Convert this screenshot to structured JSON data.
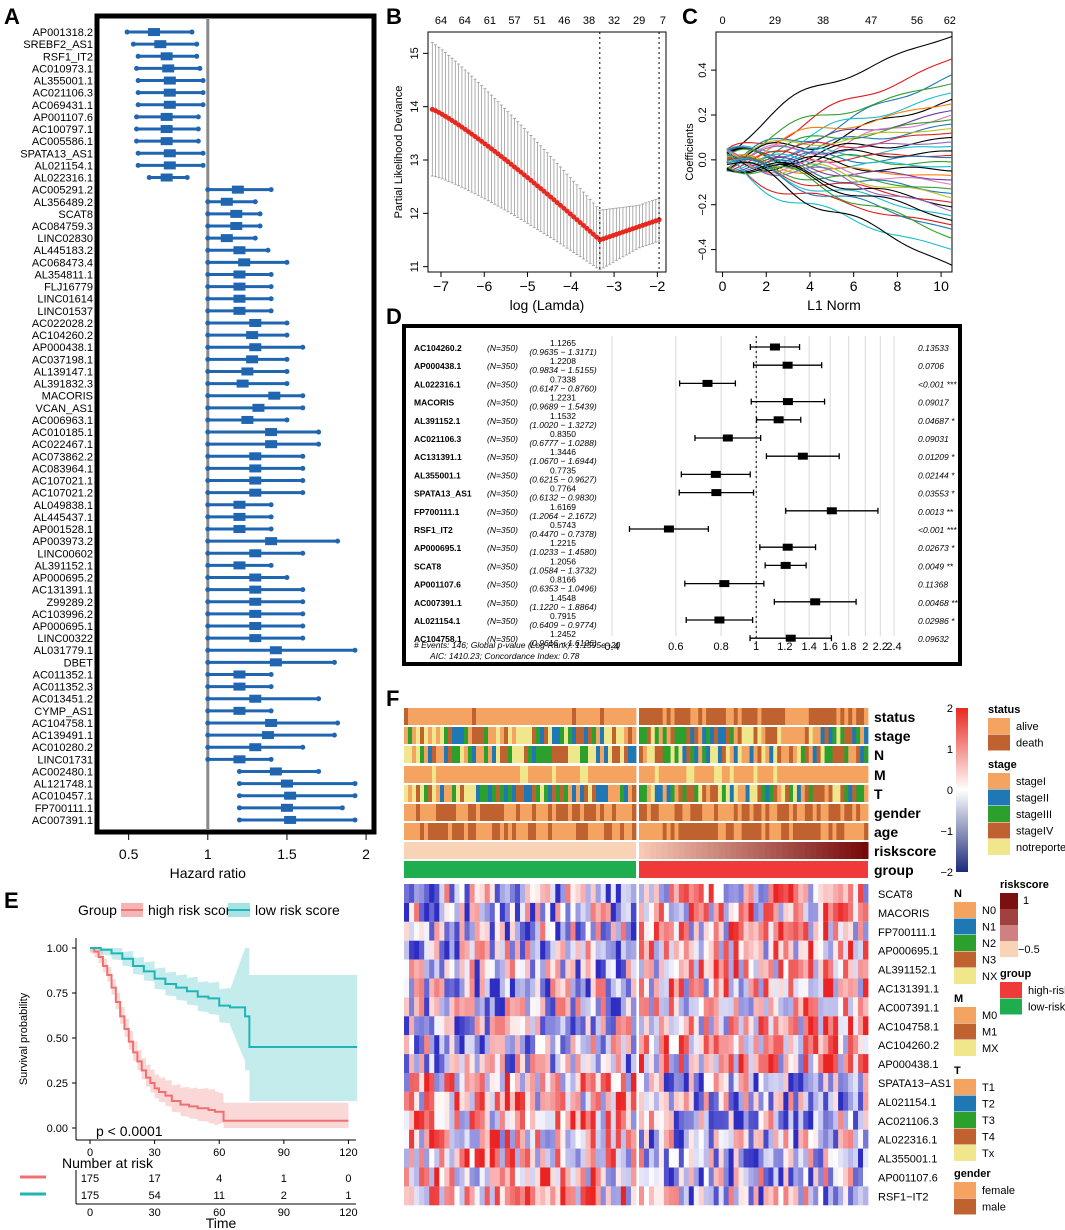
{
  "panel_labels": {
    "a": "A",
    "b": "B",
    "c": "C",
    "d": "D",
    "e": "E",
    "f": "F"
  },
  "colors": {
    "forest_blue": "#1f65b0",
    "km_high": "#f07070",
    "km_low": "#1fb5b5",
    "annot_orange": "#f4a460",
    "annot_brown": "#c0622f"
  },
  "chart_data": [
    {
      "id": "A",
      "type": "forest",
      "xlabel": "Hazard ratio",
      "xlim": [
        0.3,
        2.05
      ],
      "xticks": [
        0.5,
        1,
        1.5,
        2
      ],
      "ref_line": 1,
      "genes": [
        "AP001318.2",
        "SREBF2_AS1",
        "RSF1_IT2",
        "AC010973.1",
        "AL355001.1",
        "AC021106.3",
        "AC069431.1",
        "AP001107.6",
        "AC100797.1",
        "AC005586.1",
        "SPATA13_AS1",
        "AL021154.1",
        "AL022316.1",
        "AC005291.2",
        "AL356489.2",
        "SCAT8",
        "AC084759.3",
        "LINC02830",
        "AL445183.2",
        "AC068473.4",
        "AL354811.1",
        "FLJ16779",
        "LINC01614",
        "LINC01537",
        "AC022028.2",
        "AC104260.2",
        "AP000438.1",
        "AC037198.1",
        "AL139147.1",
        "AL391832.3",
        "MACORIS",
        "VCAN_AS1",
        "AC006963.1",
        "AC010185.1",
        "AC022467.1",
        "AC073862.2",
        "AC083964.1",
        "AC107021.1",
        "AC107021.2",
        "AL049838.1",
        "AL445437.1",
        "AP001528.1",
        "AP003973.2",
        "LINC00602",
        "AL391152.1",
        "AP000695.2",
        "AC131391.1",
        "Z99289.2",
        "AC103996.2",
        "AP000695.1",
        "LINC00322",
        "AL031779.1",
        "DBET",
        "AC011352.1",
        "AC011352.3",
        "AC013451.2",
        "CYMP_AS1",
        "AC104758.1",
        "AC139491.1",
        "AC010280.2",
        "LINC01731",
        "AC002480.1",
        "AL121748.1",
        "AC010457.1",
        "FP700111.1",
        "AC007391.1"
      ],
      "hr": [
        0.66,
        0.7,
        0.74,
        0.75,
        0.76,
        0.76,
        0.76,
        0.74,
        0.74,
        0.74,
        0.76,
        0.76,
        0.74,
        1.19,
        1.12,
        1.18,
        1.18,
        1.12,
        1.2,
        1.23,
        1.2,
        1.2,
        1.2,
        1.2,
        1.3,
        1.28,
        1.3,
        1.28,
        1.25,
        1.22,
        1.42,
        1.32,
        1.25,
        1.4,
        1.4,
        1.3,
        1.3,
        1.3,
        1.3,
        1.2,
        1.2,
        1.2,
        1.4,
        1.3,
        1.2,
        1.3,
        1.3,
        1.3,
        1.3,
        1.3,
        1.3,
        1.43,
        1.43,
        1.2,
        1.2,
        1.3,
        1.2,
        1.4,
        1.38,
        1.3,
        1.2,
        1.43,
        1.5,
        1.52,
        1.5,
        1.52
      ],
      "lo": [
        0.49,
        0.53,
        0.56,
        0.55,
        0.56,
        0.56,
        0.56,
        0.55,
        0.55,
        0.55,
        0.56,
        0.56,
        0.63,
        1.0,
        1.0,
        1.0,
        1.0,
        1.0,
        1.0,
        1.0,
        1.0,
        1.0,
        1.0,
        1.0,
        1.0,
        1.0,
        1.0,
        1.0,
        1.0,
        1.0,
        1.0,
        1.0,
        1.0,
        1.0,
        1.0,
        1.0,
        1.0,
        1.0,
        1.0,
        1.0,
        1.0,
        1.0,
        1.0,
        1.0,
        1.0,
        1.0,
        1.0,
        1.0,
        1.0,
        1.0,
        1.0,
        1.0,
        1.0,
        1.0,
        1.0,
        1.0,
        1.0,
        1.0,
        1.0,
        1.0,
        1.0,
        1.2,
        1.2,
        1.2,
        1.2,
        1.2
      ],
      "hi": [
        0.9,
        0.93,
        0.93,
        0.95,
        0.97,
        0.97,
        0.97,
        0.94,
        0.94,
        0.94,
        0.97,
        0.97,
        0.87,
        1.4,
        1.3,
        1.33,
        1.33,
        1.3,
        1.38,
        1.5,
        1.4,
        1.4,
        1.4,
        1.4,
        1.5,
        1.5,
        1.6,
        1.5,
        1.5,
        1.5,
        1.6,
        1.6,
        1.5,
        1.7,
        1.7,
        1.6,
        1.6,
        1.6,
        1.6,
        1.4,
        1.4,
        1.4,
        1.82,
        1.6,
        1.4,
        1.5,
        1.6,
        1.6,
        1.6,
        1.6,
        1.6,
        1.93,
        1.8,
        1.4,
        1.4,
        1.7,
        1.4,
        1.82,
        1.8,
        1.6,
        1.4,
        1.7,
        1.93,
        1.93,
        1.85,
        1.93
      ]
    },
    {
      "id": "B",
      "type": "cv_deviance",
      "xlabel": "log (Lamda)",
      "ylabel": "Partial Likelihood Deviance",
      "xlim": [
        -7.3,
        -1.8
      ],
      "ylim": [
        10.9,
        15.4
      ],
      "xticks": [
        -7,
        -6,
        -5,
        -4,
        -3,
        -2
      ],
      "yticks": [
        11,
        12,
        13,
        14,
        15
      ],
      "top_ticks": [
        "64",
        "64",
        "61",
        "57",
        "51",
        "46",
        "38",
        "32",
        "29",
        "7"
      ],
      "top_tick_x": [
        -7.0,
        -6.45,
        -5.87,
        -5.3,
        -4.72,
        -4.15,
        -3.58,
        -3.0,
        -2.42,
        -1.87
      ],
      "vlines": [
        -3.33,
        -1.96
      ],
      "x_start": -7.2,
      "x_end": -1.96,
      "n_points": 70
    },
    {
      "id": "C",
      "type": "coef_path",
      "xlabel": "L1 Norm",
      "ylabel": "Coefficients",
      "xlim": [
        -0.3,
        10.5
      ],
      "ylim": [
        -0.5,
        0.57
      ],
      "xticks": [
        0,
        2,
        4,
        6,
        8,
        10
      ],
      "yticks": [
        -0.4,
        -0.2,
        0.0,
        0.2,
        0.4
      ],
      "top_ticks": [
        "0",
        "29",
        "38",
        "47",
        "56",
        "62"
      ],
      "top_tick_x": [
        0,
        2.4,
        4.6,
        6.8,
        8.9,
        10.4
      ],
      "final_coefs": [
        0.55,
        0.45,
        0.38,
        0.34,
        0.3,
        0.27,
        0.25,
        0.22,
        0.2,
        0.18,
        0.16,
        0.14,
        0.12,
        0.1,
        0.08,
        0.06,
        0.04,
        0.02,
        0.01,
        -0.01,
        -0.03,
        -0.05,
        -0.07,
        -0.09,
        -0.11,
        -0.13,
        -0.15,
        -0.17,
        -0.19,
        -0.21,
        -0.23,
        -0.25,
        -0.27,
        -0.29,
        -0.31,
        -0.35,
        -0.4,
        -0.47
      ],
      "line_colors": [
        "#000000",
        "#e31a1c",
        "#1f78b4",
        "#33a02c",
        "#17becf",
        "#000000",
        "#ff7f0e",
        "#6a3d9a",
        "#e377c2",
        "#2ca02c",
        "#1f77b4",
        "#bcbd22",
        "#d62728",
        "#000000",
        "#9467bd",
        "#17becf"
      ]
    },
    {
      "id": "D",
      "type": "forest_table",
      "genes": [
        "AC104260.2",
        "AP000438.1",
        "AL022316.1",
        "MACORIS",
        "AL391152.1",
        "AC021106.3",
        "AC131391.1",
        "AL355001.1",
        "SPATA13_AS1",
        "FP700111.1",
        "RSF1_IT2",
        "AP000695.1",
        "SCAT8",
        "AP001107.6",
        "AC007391.1",
        "AL021154.1",
        "AC104758.1"
      ],
      "n": [
        "(N=350)",
        "(N=350)",
        "(N=350)",
        "(N=350)",
        "(N=350)",
        "(N=350)",
        "(N=350)",
        "(N=350)",
        "(N=350)",
        "(N=350)",
        "(N=350)",
        "(N=350)",
        "(N=350)",
        "(N=350)",
        "(N=350)",
        "(N=350)",
        "(N=350)"
      ],
      "hr_text": [
        "1.1265",
        "1.2208",
        "0.7338",
        "1.2231",
        "1.1532",
        "0.8350",
        "1.3446",
        "0.7735",
        "0.7764",
        "1.6169",
        "0.5743",
        "1.2215",
        "1.2056",
        "0.8166",
        "1.4548",
        "0.7915",
        "1.2452"
      ],
      "ci_text": [
        "(0.9635 − 1.3171)",
        "(0.9834 − 1.5155)",
        "(0.6147 − 0.8760)",
        "(0.9689 − 1.5439)",
        "(1.0020 − 1.3272)",
        "(0.6777 − 1.0288)",
        "(1.0670 − 1.6944)",
        "(0.6215 − 0.9627)",
        "(0.6132 − 0.9830)",
        "(1.2064 − 2.1672)",
        "(0.4470 − 0.7378)",
        "(1.0233 − 1.4580)",
        "(1.0584 − 1.3732)",
        "(0.6353 − 1.0496)",
        "(1.1220 − 1.8864)",
        "(0.6409 − 0.9774)",
        "(0.9616 − 1.6126)"
      ],
      "p_text": [
        "0.13533",
        "0.0706",
        "<0.001 ***",
        "0.09017",
        "0.04687 *",
        "0.09031",
        "0.01209 *",
        "0.02144 *",
        "0.03553 *",
        "0.0013 **",
        "<0.001 ***",
        "0.02673 *",
        "0.0049 **",
        "0.11368",
        "0.00468 **",
        "0.02986 *",
        "0.09632"
      ],
      "hr": [
        1.1265,
        1.2208,
        0.7338,
        1.2231,
        1.1532,
        0.835,
        1.3446,
        0.7735,
        0.7764,
        1.6169,
        0.5743,
        1.2215,
        1.2056,
        0.8166,
        1.4548,
        0.7915,
        1.2452
      ],
      "lo": [
        0.9635,
        0.9834,
        0.6147,
        0.9689,
        1.002,
        0.6777,
        1.067,
        0.6215,
        0.6132,
        1.2064,
        0.447,
        1.0233,
        1.0584,
        0.6353,
        1.122,
        0.6409,
        0.9616
      ],
      "hi": [
        1.3171,
        1.5155,
        0.876,
        1.5439,
        1.3272,
        1.0288,
        1.6944,
        0.9627,
        0.983,
        2.1672,
        0.7378,
        1.458,
        1.3732,
        1.0496,
        1.8864,
        0.9774,
        1.6126
      ],
      "axis_ticks": [
        0.4,
        0.6,
        0.8,
        1,
        1.2,
        1.4,
        1.6,
        1.8,
        2,
        2.2,
        2.4
      ],
      "axis_labels": [
        "0.4",
        "0.6",
        "0.8",
        "1",
        "1.2",
        "1.4",
        "1.6",
        "1.8",
        "2",
        "2.2",
        "2.4"
      ],
      "footer1": "# Events: 146; Global p-value (Log-Rank): 1.1595e−20",
      "footer2": "AIC: 1410.23; Concordance Index: 0.78"
    },
    {
      "id": "E",
      "type": "km",
      "legend_title": "Group",
      "legend": [
        "high risk score",
        "low risk score"
      ],
      "xlabel": "Time",
      "ylabel": "Survival probability",
      "xticks": [
        0,
        30,
        60,
        90,
        120
      ],
      "yticks": [
        "0.00",
        "0.25",
        "0.50",
        "0.75",
        "1.00"
      ],
      "pvalue": "p < 0.0001",
      "risk_title": "Number at risk",
      "risk_high": [
        "175",
        "17",
        "4",
        "1",
        "0"
      ],
      "risk_low": [
        "175",
        "54",
        "11",
        "2",
        "1"
      ],
      "high_curve": [
        [
          0,
          1
        ],
        [
          2,
          0.98
        ],
        [
          4,
          0.95
        ],
        [
          6,
          0.9
        ],
        [
          8,
          0.85
        ],
        [
          10,
          0.78
        ],
        [
          12,
          0.7
        ],
        [
          14,
          0.62
        ],
        [
          16,
          0.55
        ],
        [
          18,
          0.48
        ],
        [
          20,
          0.42
        ],
        [
          22,
          0.37
        ],
        [
          24,
          0.32
        ],
        [
          26,
          0.28
        ],
        [
          28,
          0.25
        ],
        [
          30,
          0.22
        ],
        [
          32,
          0.2
        ],
        [
          35,
          0.18
        ],
        [
          38,
          0.15
        ],
        [
          42,
          0.13
        ],
        [
          46,
          0.12
        ],
        [
          50,
          0.11
        ],
        [
          55,
          0.1
        ],
        [
          58,
          0.09
        ],
        [
          62,
          0.04
        ],
        [
          120,
          0.04
        ]
      ],
      "low_curve": [
        [
          0,
          1
        ],
        [
          5,
          0.99
        ],
        [
          10,
          0.97
        ],
        [
          15,
          0.94
        ],
        [
          20,
          0.9
        ],
        [
          25,
          0.87
        ],
        [
          30,
          0.83
        ],
        [
          35,
          0.8
        ],
        [
          40,
          0.78
        ],
        [
          45,
          0.76
        ],
        [
          50,
          0.73
        ],
        [
          55,
          0.72
        ],
        [
          60,
          0.68
        ],
        [
          65,
          0.67
        ],
        [
          72,
          0.62
        ],
        [
          74,
          0.45
        ],
        [
          124,
          0.45
        ]
      ]
    },
    {
      "id": "F",
      "type": "heatmap",
      "tracks": [
        "status",
        "stage",
        "N",
        "M",
        "T",
        "gender",
        "age",
        "riskscore",
        "group"
      ],
      "genes": [
        "SCAT8",
        "MACORIS",
        "FP700111.1",
        "AP000695.1",
        "AL391152.1",
        "AC131391.1",
        "AC007391.1",
        "AC104758.1",
        "AC104260.2",
        "AP000438.1",
        "SPATA13−AS1",
        "AL021154.1",
        "AC021106.3",
        "AL022316.1",
        "AL355001.1",
        "AP001107.6",
        "RSF1−IT2"
      ],
      "colorbar_ticks": [
        "2",
        "1",
        "0",
        "−1",
        "−2"
      ],
      "legends": {
        "status": {
          "title": "status",
          "items": [
            "alive",
            "death"
          ],
          "colors": [
            "#f4a460",
            "#c0622f"
          ]
        },
        "stage": {
          "title": "stage",
          "items": [
            "stageI",
            "stageII",
            "stageIII",
            "stageIV",
            "notreported"
          ],
          "colors": [
            "#f4a460",
            "#1f78b4",
            "#2ca02c",
            "#c0622f",
            "#f0e68c"
          ]
        },
        "N": {
          "title": "N",
          "items": [
            "N0",
            "N1",
            "N2",
            "N3",
            "NX"
          ],
          "colors": [
            "#f4a460",
            "#1f78b4",
            "#2ca02c",
            "#c0622f",
            "#f0e68c"
          ]
        },
        "M": {
          "title": "M",
          "items": [
            "M0",
            "M1",
            "MX"
          ],
          "colors": [
            "#f4a460",
            "#c0622f",
            "#f0e68c"
          ]
        },
        "T": {
          "title": "T",
          "items": [
            "T1",
            "T2",
            "T3",
            "T4",
            "Tx"
          ],
          "colors": [
            "#f4a460",
            "#1f78b4",
            "#2ca02c",
            "#c0622f",
            "#f0e68c"
          ]
        },
        "gender": {
          "title": "gender",
          "items": [
            "female",
            "male"
          ],
          "colors": [
            "#f4a460",
            "#c0622f"
          ]
        },
        "riskscore": {
          "title": "riskscore",
          "ticks": [
            "1",
            "−0.5"
          ]
        },
        "group": {
          "title": "group",
          "items": [
            "high-risk",
            "low-risk"
          ],
          "colors": [
            "#f03a3a",
            "#1fae4f"
          ]
        }
      }
    }
  ]
}
